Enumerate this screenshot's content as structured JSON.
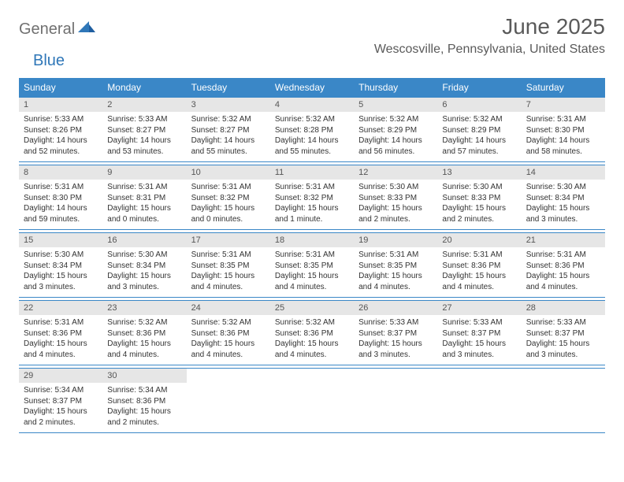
{
  "logo": {
    "general": "General",
    "blue": "Blue"
  },
  "title": "June 2025",
  "location": "Wescosville, Pennsylvania, United States",
  "colors": {
    "header_bg": "#3a87c7",
    "header_text": "#ffffff",
    "week_border": "#3a87c7",
    "daynum_bg": "#e6e6e6",
    "daynum_text": "#555555",
    "body_text": "#333333",
    "title_text": "#5a5a5a",
    "logo_gray": "#707070",
    "logo_blue": "#2f77b8"
  },
  "day_names": [
    "Sunday",
    "Monday",
    "Tuesday",
    "Wednesday",
    "Thursday",
    "Friday",
    "Saturday"
  ],
  "weeks": [
    [
      {
        "n": 1,
        "sr": "5:33 AM",
        "ss": "8:26 PM",
        "dl": "14 hours and 52 minutes."
      },
      {
        "n": 2,
        "sr": "5:33 AM",
        "ss": "8:27 PM",
        "dl": "14 hours and 53 minutes."
      },
      {
        "n": 3,
        "sr": "5:32 AM",
        "ss": "8:27 PM",
        "dl": "14 hours and 55 minutes."
      },
      {
        "n": 4,
        "sr": "5:32 AM",
        "ss": "8:28 PM",
        "dl": "14 hours and 55 minutes."
      },
      {
        "n": 5,
        "sr": "5:32 AM",
        "ss": "8:29 PM",
        "dl": "14 hours and 56 minutes."
      },
      {
        "n": 6,
        "sr": "5:32 AM",
        "ss": "8:29 PM",
        "dl": "14 hours and 57 minutes."
      },
      {
        "n": 7,
        "sr": "5:31 AM",
        "ss": "8:30 PM",
        "dl": "14 hours and 58 minutes."
      }
    ],
    [
      {
        "n": 8,
        "sr": "5:31 AM",
        "ss": "8:30 PM",
        "dl": "14 hours and 59 minutes."
      },
      {
        "n": 9,
        "sr": "5:31 AM",
        "ss": "8:31 PM",
        "dl": "15 hours and 0 minutes."
      },
      {
        "n": 10,
        "sr": "5:31 AM",
        "ss": "8:32 PM",
        "dl": "15 hours and 0 minutes."
      },
      {
        "n": 11,
        "sr": "5:31 AM",
        "ss": "8:32 PM",
        "dl": "15 hours and 1 minute."
      },
      {
        "n": 12,
        "sr": "5:30 AM",
        "ss": "8:33 PM",
        "dl": "15 hours and 2 minutes."
      },
      {
        "n": 13,
        "sr": "5:30 AM",
        "ss": "8:33 PM",
        "dl": "15 hours and 2 minutes."
      },
      {
        "n": 14,
        "sr": "5:30 AM",
        "ss": "8:34 PM",
        "dl": "15 hours and 3 minutes."
      }
    ],
    [
      {
        "n": 15,
        "sr": "5:30 AM",
        "ss": "8:34 PM",
        "dl": "15 hours and 3 minutes."
      },
      {
        "n": 16,
        "sr": "5:30 AM",
        "ss": "8:34 PM",
        "dl": "15 hours and 3 minutes."
      },
      {
        "n": 17,
        "sr": "5:31 AM",
        "ss": "8:35 PM",
        "dl": "15 hours and 4 minutes."
      },
      {
        "n": 18,
        "sr": "5:31 AM",
        "ss": "8:35 PM",
        "dl": "15 hours and 4 minutes."
      },
      {
        "n": 19,
        "sr": "5:31 AM",
        "ss": "8:35 PM",
        "dl": "15 hours and 4 minutes."
      },
      {
        "n": 20,
        "sr": "5:31 AM",
        "ss": "8:36 PM",
        "dl": "15 hours and 4 minutes."
      },
      {
        "n": 21,
        "sr": "5:31 AM",
        "ss": "8:36 PM",
        "dl": "15 hours and 4 minutes."
      }
    ],
    [
      {
        "n": 22,
        "sr": "5:31 AM",
        "ss": "8:36 PM",
        "dl": "15 hours and 4 minutes."
      },
      {
        "n": 23,
        "sr": "5:32 AM",
        "ss": "8:36 PM",
        "dl": "15 hours and 4 minutes."
      },
      {
        "n": 24,
        "sr": "5:32 AM",
        "ss": "8:36 PM",
        "dl": "15 hours and 4 minutes."
      },
      {
        "n": 25,
        "sr": "5:32 AM",
        "ss": "8:36 PM",
        "dl": "15 hours and 4 minutes."
      },
      {
        "n": 26,
        "sr": "5:33 AM",
        "ss": "8:37 PM",
        "dl": "15 hours and 3 minutes."
      },
      {
        "n": 27,
        "sr": "5:33 AM",
        "ss": "8:37 PM",
        "dl": "15 hours and 3 minutes."
      },
      {
        "n": 28,
        "sr": "5:33 AM",
        "ss": "8:37 PM",
        "dl": "15 hours and 3 minutes."
      }
    ],
    [
      {
        "n": 29,
        "sr": "5:34 AM",
        "ss": "8:37 PM",
        "dl": "15 hours and 2 minutes."
      },
      {
        "n": 30,
        "sr": "5:34 AM",
        "ss": "8:36 PM",
        "dl": "15 hours and 2 minutes."
      },
      null,
      null,
      null,
      null,
      null
    ]
  ],
  "labels": {
    "sunrise": "Sunrise:",
    "sunset": "Sunset:",
    "daylight": "Daylight:"
  }
}
